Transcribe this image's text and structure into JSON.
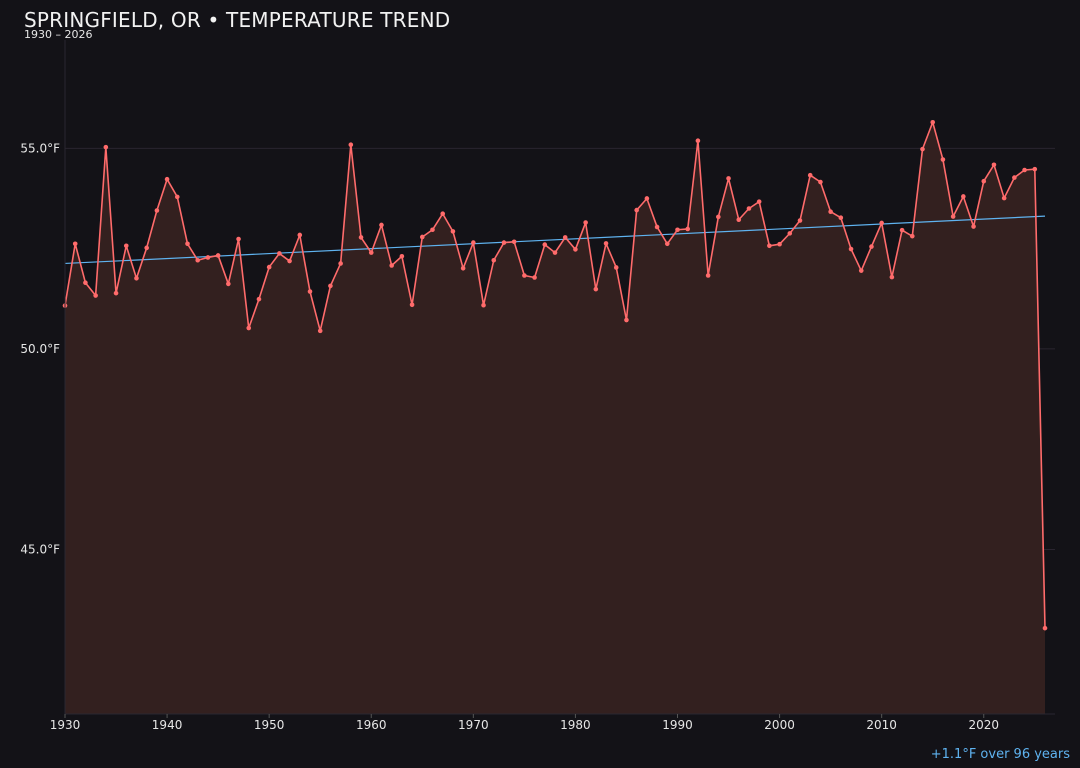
{
  "header": {
    "title": "SPRINGFIELD, OR • TEMPERATURE TREND",
    "subtitle": "1930 – 2026"
  },
  "footnote": "+1.1°F over 96 years",
  "colors": {
    "background": "#131217",
    "series": "#ff6b6b",
    "area_fill": "#33201f",
    "trend": "#5fb3f0",
    "grid": "#2a2530",
    "text": "#e6e6e6"
  },
  "chart_data": {
    "type": "line",
    "title": "SPRINGFIELD, OR • TEMPERATURE TREND",
    "subtitle": "1930 – 2026",
    "xlabel": "",
    "ylabel": "",
    "xlim": [
      1930,
      2026
    ],
    "ylim": [
      40.9,
      57.7
    ],
    "x_ticks": [
      1930,
      1940,
      1950,
      1960,
      1970,
      1980,
      1990,
      2000,
      2010,
      2020
    ],
    "y_ticks": [
      45.0,
      50.0,
      55.0
    ],
    "y_tick_labels": [
      "45.0°F",
      "50.0°F",
      "55.0°F"
    ],
    "grid": "horizontal",
    "area_fill": true,
    "series": [
      {
        "x": [
          1930,
          1931,
          1932,
          1933,
          1934,
          1935,
          1936,
          1937,
          1938,
          1939,
          1940,
          1941,
          1942,
          1943,
          1944,
          1945,
          1946,
          1947,
          1948,
          1949,
          1950,
          1951,
          1952,
          1953,
          1954,
          1955,
          1956,
          1957,
          1958,
          1959,
          1960,
          1961,
          1962,
          1963,
          1964,
          1965,
          1966,
          1967,
          1968,
          1969,
          1970,
          1971,
          1972,
          1973,
          1974,
          1975,
          1976,
          1977,
          1978,
          1979,
          1980,
          1981,
          1982,
          1983,
          1984,
          1985,
          1986,
          1987,
          1988,
          1989,
          1990,
          1991,
          1992,
          1993,
          1994,
          1995,
          1996,
          1997,
          1998,
          1999,
          2000,
          2001,
          2002,
          2003,
          2004,
          2005,
          2006,
          2007,
          2008,
          2009,
          2010,
          2011,
          2012,
          2013,
          2014,
          2015,
          2016,
          2017,
          2018,
          2019,
          2020,
          2021,
          2022,
          2023,
          2024,
          2025,
          2026
        ],
        "values": [
          51.08,
          52.62,
          51.65,
          51.33,
          55.03,
          51.39,
          52.57,
          51.76,
          52.52,
          53.45,
          54.23,
          53.79,
          52.62,
          52.21,
          52.28,
          52.33,
          51.62,
          52.74,
          50.52,
          51.24,
          52.04,
          52.38,
          52.19,
          52.84,
          51.43,
          50.45,
          51.57,
          52.13,
          55.09,
          52.78,
          52.4,
          53.09,
          52.08,
          52.31,
          51.1,
          52.79,
          52.97,
          53.37,
          52.93,
          52.01,
          52.65,
          51.09,
          52.21,
          52.65,
          52.67,
          51.83,
          51.78,
          52.6,
          52.4,
          52.78,
          52.48,
          53.15,
          51.49,
          52.63,
          52.03,
          50.72,
          53.46,
          53.75,
          53.04,
          52.62,
          52.97,
          52.99,
          55.19,
          51.83,
          53.29,
          54.25,
          53.22,
          53.5,
          53.67,
          52.57,
          52.61,
          52.88,
          53.2,
          54.33,
          54.16,
          53.42,
          53.27,
          52.49,
          51.95,
          52.55,
          53.14,
          51.79,
          52.96,
          52.81,
          54.98,
          55.65,
          54.72,
          53.3,
          53.8,
          53.05,
          54.18,
          54.59,
          53.76,
          54.27,
          54.46,
          54.48,
          43.04
        ],
        "color": "#ff6b6b"
      }
    ],
    "trend_line": {
      "start": [
        1930,
        52.13
      ],
      "end": [
        2026,
        53.31
      ],
      "color": "#5fb3f0"
    }
  }
}
